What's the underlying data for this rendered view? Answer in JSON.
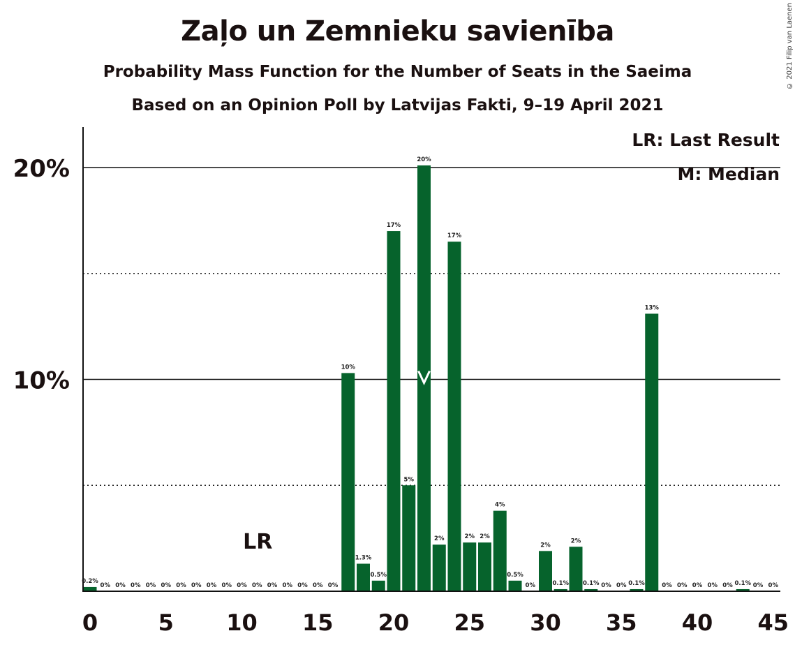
{
  "chart_data": {
    "type": "bar",
    "title": "Zaļo un Zemnieku savienība",
    "subtitle": "Probability Mass Function for the Number of Seats in the Saeima",
    "subtitle2": "Based on an Opinion Poll by Latvijas Fakti, 9–19 April 2021",
    "copyright": "© 2021 Filip van Laenen",
    "legend": {
      "lr": "LR: Last Result",
      "m": "M: Median",
      "placement": "top-right"
    },
    "x": [
      0,
      1,
      2,
      3,
      4,
      5,
      6,
      7,
      8,
      9,
      10,
      11,
      12,
      13,
      14,
      15,
      16,
      17,
      18,
      19,
      20,
      21,
      22,
      23,
      24,
      25,
      26,
      27,
      28,
      29,
      30,
      31,
      32,
      33,
      34,
      35,
      36,
      37,
      38,
      39,
      40,
      41,
      42,
      43,
      44,
      45
    ],
    "values": [
      0.2,
      0,
      0,
      0,
      0,
      0,
      0,
      0,
      0,
      0,
      0,
      0,
      0,
      0,
      0,
      0,
      0,
      10.3,
      1.3,
      0.5,
      17.0,
      5.0,
      20.1,
      2.2,
      16.5,
      2.3,
      2.3,
      3.8,
      0.5,
      0,
      1.9,
      0.1,
      2.1,
      0.1,
      0,
      0,
      0.1,
      13.1,
      0,
      0,
      0,
      0,
      0,
      0.1,
      0,
      0
    ],
    "labels": [
      "0.2%",
      "0%",
      "0%",
      "0%",
      "0%",
      "0%",
      "0%",
      "0%",
      "0%",
      "0%",
      "0%",
      "0%",
      "0%",
      "0%",
      "0%",
      "0%",
      "0%",
      "10%",
      "1.3%",
      "0.5%",
      "17%",
      "5%",
      "20%",
      "2%",
      "17%",
      "2%",
      "2%",
      "4%",
      "0.5%",
      "0%",
      "2%",
      "0.1%",
      "2%",
      "0.1%",
      "0%",
      "0%",
      "0.1%",
      "13%",
      "0%",
      "0%",
      "0%",
      "0%",
      "0%",
      "0.1%",
      "0%",
      "0%"
    ],
    "xticks": [
      0,
      5,
      10,
      15,
      20,
      25,
      30,
      35,
      40,
      45
    ],
    "xtick_labels": [
      "0",
      "5",
      "10",
      "15",
      "20",
      "25",
      "30",
      "35",
      "40",
      "45"
    ],
    "yticks": [
      10,
      20
    ],
    "ytick_labels": [
      "10%",
      "20%"
    ],
    "ylim": [
      0,
      22
    ],
    "xlim": [
      -0.5,
      45.5
    ],
    "last_result": 11,
    "last_result_label": "LR",
    "median": 22,
    "median_label": "M",
    "bar_color": "#06632c",
    "grid": "dotted at 5%, 15%; solid at 10%, 20%"
  }
}
